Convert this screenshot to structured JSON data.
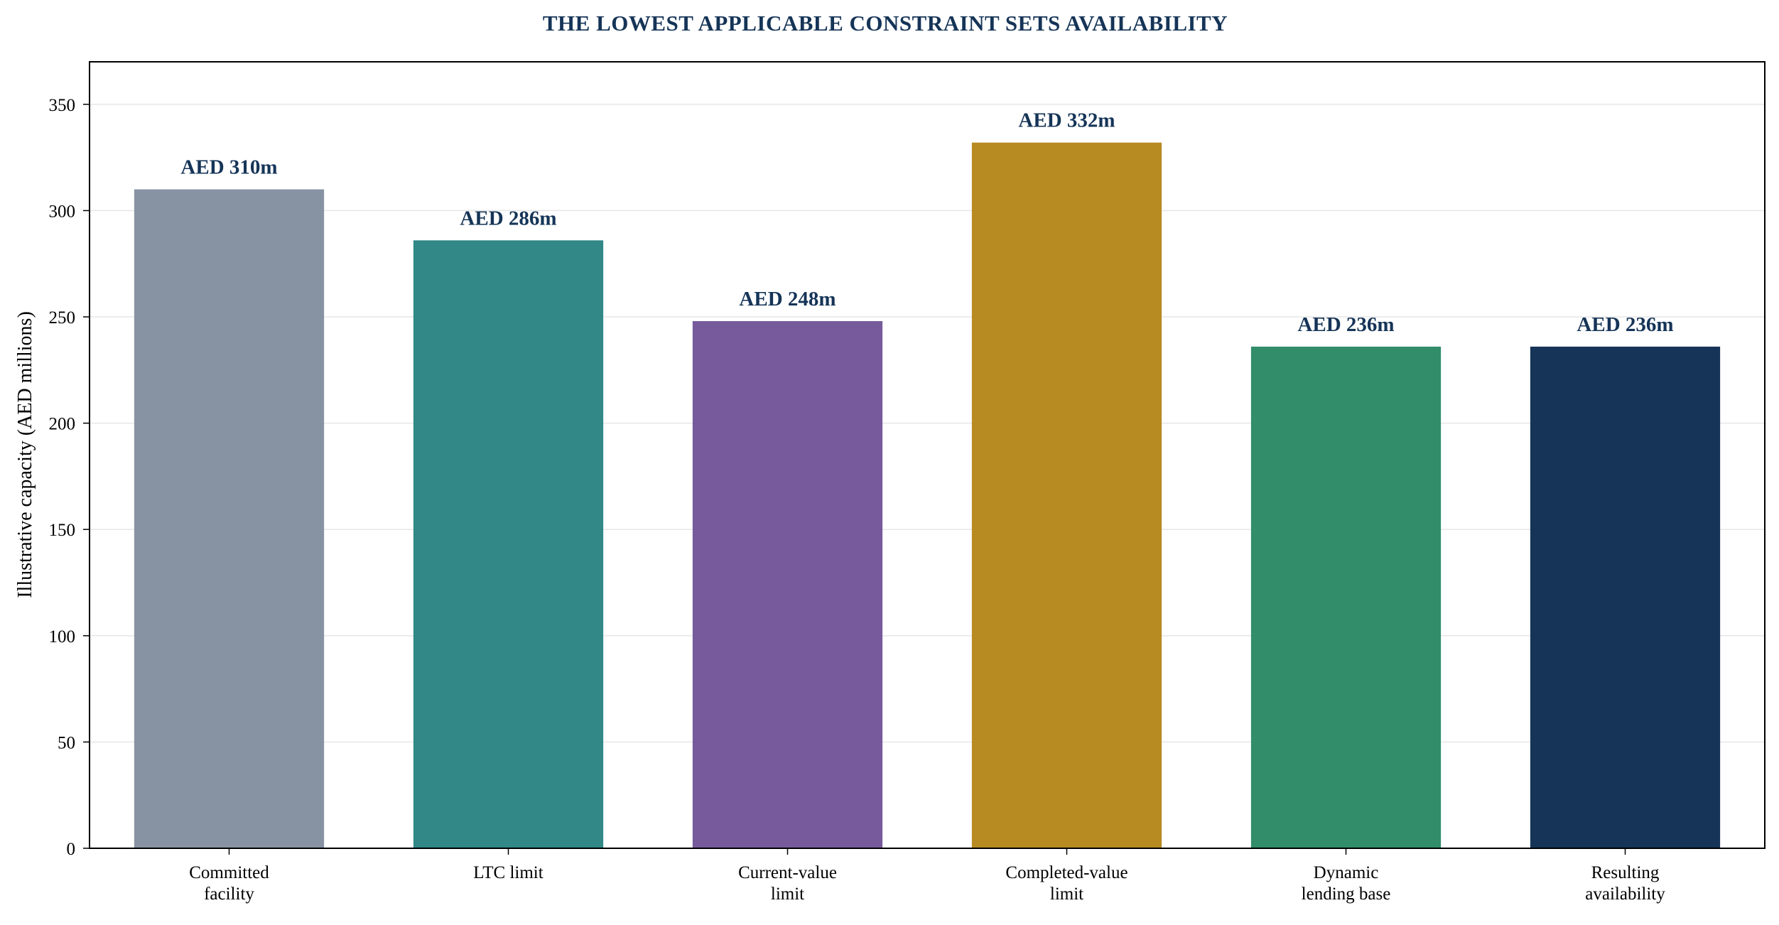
{
  "chart_data": {
    "type": "bar",
    "title": "THE LOWEST APPLICABLE CONSTRAINT SETS AVAILABILITY",
    "ylabel": "Illustrative capacity (AED millions)",
    "xlabel": "",
    "ylim": [
      0,
      370
    ],
    "yticks": [
      0,
      50,
      100,
      150,
      200,
      250,
      300,
      350
    ],
    "grid": "horizontal",
    "legend": "none",
    "categories": [
      [
        "Committed",
        "facility"
      ],
      [
        "LTC limit"
      ],
      [
        "Current-value",
        "limit"
      ],
      [
        "Completed-value",
        "limit"
      ],
      [
        "Dynamic",
        "lending base"
      ],
      [
        "Resulting",
        "availability"
      ]
    ],
    "values": [
      310,
      286,
      248,
      332,
      236,
      236
    ],
    "value_labels": [
      "AED 310m",
      "AED 286m",
      "AED 248m",
      "AED 332m",
      "AED 236m",
      "AED 236m"
    ],
    "colors": [
      "#8793a3",
      "#318886",
      "#765a9b",
      "#b78a22",
      "#318d6a",
      "#153457"
    ],
    "title_color": "#153457",
    "value_label_color": "#153457"
  }
}
